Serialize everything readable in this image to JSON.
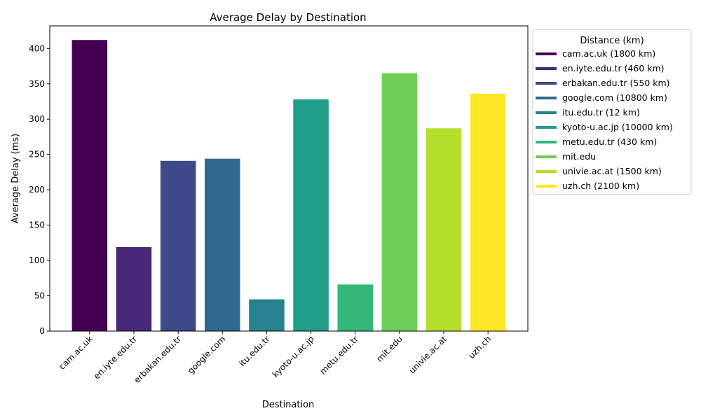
{
  "chart_data": {
    "type": "bar",
    "title": "Average Delay by Destination",
    "xlabel": "Destination",
    "ylabel": "Average Delay (ms)",
    "ylim": [
      0,
      432
    ],
    "yticks": [
      0,
      50,
      100,
      150,
      200,
      250,
      300,
      350,
      400
    ],
    "grid": false,
    "legend": {
      "title": "Distance (km)",
      "placement": "outside-right-top"
    },
    "categories": [
      "cam.ac.uk",
      "en.iyte.edu.tr",
      "erbakan.edu.tr",
      "google.com",
      "itu.edu.tr",
      "kyoto-u.ac.jp",
      "metu.edu.tr",
      "mit.edu",
      "univie.ac.at",
      "uzh.ch"
    ],
    "values": [
      412,
      119,
      241,
      244,
      45,
      328,
      66,
      365,
      287,
      336
    ],
    "colors": [
      "#440154",
      "#482878",
      "#3e4989",
      "#31688e",
      "#26828e",
      "#1f9e89",
      "#35b779",
      "#6ece58",
      "#b5de2b",
      "#fde725"
    ],
    "legend_entries": [
      "cam.ac.uk (1800 km)",
      "en.iyte.edu.tr (460 km)",
      "erbakan.edu.tr (550 km)",
      "google.com (10800 km)",
      "itu.edu.tr (12 km)",
      "kyoto-u.ac.jp (10000 km)",
      "metu.edu.tr (430 km)",
      "mit.edu",
      "univie.ac.at (1500 km)",
      "uzh.ch (2100 km)"
    ]
  }
}
